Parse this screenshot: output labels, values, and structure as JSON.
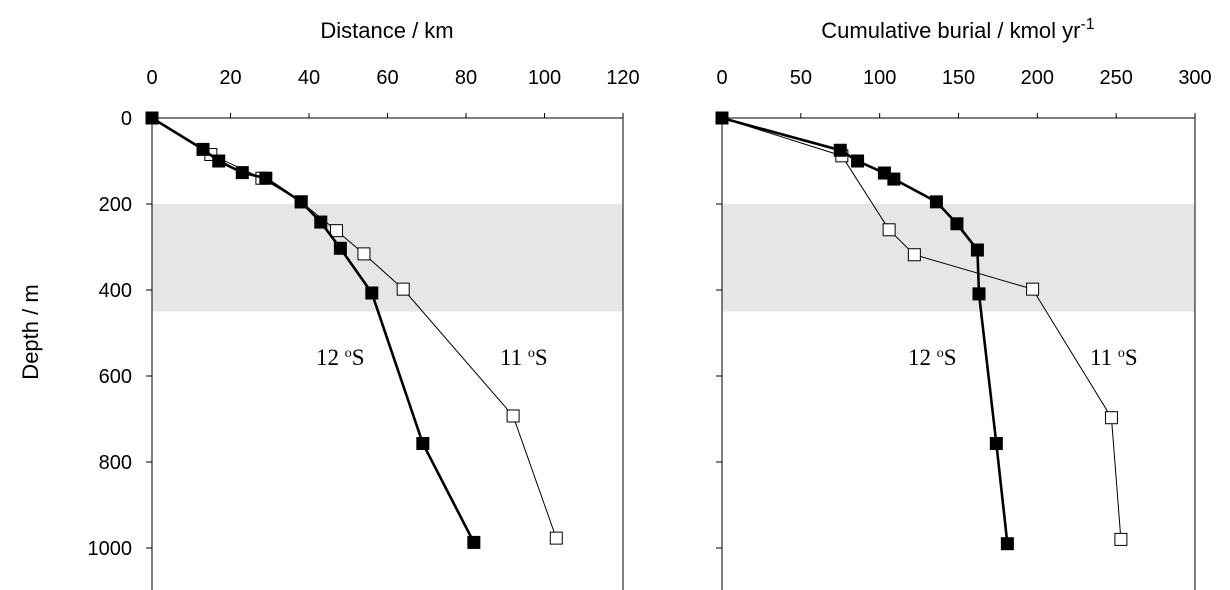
{
  "colors": {
    "shade": "#e6e6e6",
    "axis": "#000000",
    "filled": "#000000",
    "open_fill": "#ffffff"
  },
  "chart_data": [
    {
      "type": "line",
      "title": "Distance / km",
      "xlabel": "Distance / km",
      "ylabel": "Depth / m",
      "xlim": [
        0,
        120
      ],
      "ylim": [
        1100,
        0
      ],
      "y_inverted": true,
      "x_axis_position": "top",
      "x_ticks": [
        "0",
        "20",
        "40",
        "60",
        "80",
        "100",
        "120"
      ],
      "y_ticks": [
        "0",
        "200",
        "400",
        "600",
        "800",
        "1000"
      ],
      "shaded_depth_band": [
        200,
        450
      ],
      "series": [
        {
          "name": "11 oS",
          "marker": "open-square",
          "label_main": "11 ",
          "label_sup": "o",
          "label_end": "S",
          "points": [
            [
              0,
              0
            ],
            [
              15,
              85
            ],
            [
              28,
              140
            ],
            [
              38,
              195
            ],
            [
              47,
              262
            ],
            [
              54,
              316
            ],
            [
              64,
              398
            ],
            [
              92,
              693
            ],
            [
              103,
              977
            ]
          ]
        },
        {
          "name": "12 oS",
          "marker": "filled-square",
          "label_main": "12 ",
          "label_sup": "o",
          "label_end": "S",
          "points": [
            [
              0,
              0
            ],
            [
              13,
              73
            ],
            [
              17,
              100
            ],
            [
              23,
              127
            ],
            [
              29,
              140
            ],
            [
              38,
              195
            ],
            [
              43,
              242
            ],
            [
              48,
              303
            ],
            [
              56,
              407
            ],
            [
              69,
              757
            ],
            [
              82,
              987
            ]
          ]
        }
      ]
    },
    {
      "type": "line",
      "title_main": "Cumulative burial / kmol yr",
      "title_sup": "-1",
      "xlabel": "Cumulative burial / kmol yr-1",
      "ylabel": "",
      "xlim": [
        0,
        300
      ],
      "ylim": [
        1100,
        0
      ],
      "y_inverted": true,
      "x_axis_position": "top",
      "x_ticks": [
        "0",
        "50",
        "100",
        "150",
        "200",
        "250",
        "300"
      ],
      "shaded_depth_band": [
        200,
        450
      ],
      "series": [
        {
          "name": "11 oS",
          "marker": "open-square",
          "label_main": "11 ",
          "label_sup": "o",
          "label_end": "S",
          "points": [
            [
              0,
              0
            ],
            [
              76,
              88
            ],
            [
              106,
              260
            ],
            [
              122,
              318
            ],
            [
              197,
              398
            ],
            [
              247,
              697
            ],
            [
              253,
              980
            ]
          ]
        },
        {
          "name": "12 oS",
          "marker": "filled-square",
          "label_main": "12 ",
          "label_sup": "o",
          "label_end": "S",
          "points": [
            [
              0,
              0
            ],
            [
              75,
              75
            ],
            [
              86,
              100
            ],
            [
              103,
              128
            ],
            [
              109,
              142
            ],
            [
              136,
              195
            ],
            [
              149,
              246
            ],
            [
              162,
              307
            ],
            [
              163,
              409
            ],
            [
              174,
              757
            ],
            [
              181,
              990
            ]
          ]
        }
      ]
    }
  ]
}
